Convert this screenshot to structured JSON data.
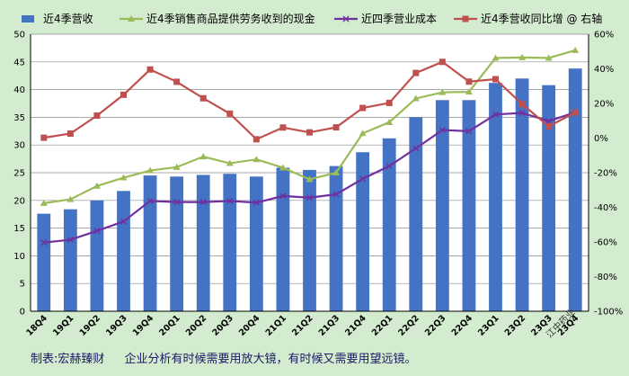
{
  "chart_data": {
    "type": "bar",
    "categories": [
      "18Q4",
      "19Q1",
      "19Q2",
      "19Q3",
      "19Q4",
      "20Q1",
      "20Q2",
      "20Q3",
      "20Q4",
      "21Q1",
      "21Q2",
      "21Q3",
      "21Q4",
      "22Q1",
      "22Q2",
      "22Q3",
      "22Q4",
      "23Q1",
      "23Q2",
      "23Q3",
      "23Q4"
    ],
    "ylim": [
      0,
      50
    ],
    "yticks": [
      0,
      5,
      10,
      15,
      20,
      25,
      30,
      35,
      40,
      45,
      50
    ],
    "y2lim": [
      -100,
      60
    ],
    "y2ticks": [
      "-100%",
      "-80%",
      "-60%",
      "-40%",
      "-20%",
      "0%",
      "20%",
      "40%",
      "60%"
    ],
    "grid": true,
    "legend_position": "top",
    "series": [
      {
        "name": "近4季营收",
        "type": "bar",
        "axis": "left",
        "color": "#4472c4",
        "values": [
          17.6,
          18.4,
          20.0,
          21.7,
          24.5,
          24.3,
          24.6,
          24.8,
          24.3,
          25.9,
          25.5,
          26.2,
          28.7,
          31.2,
          35.0,
          38.1,
          38.1,
          41.2,
          42.0,
          40.8,
          43.8
        ]
      },
      {
        "name": "近4季销售商品提供劳务收到的现金",
        "type": "line",
        "axis": "left",
        "color": "#9bbb59",
        "marker": "triangle",
        "values": [
          19.5,
          20.2,
          22.6,
          24.1,
          25.4,
          26.0,
          27.9,
          26.7,
          27.4,
          25.9,
          23.8,
          25.0,
          32.1,
          34.1,
          38.4,
          39.5,
          39.6,
          45.7,
          45.8,
          45.7,
          47.1
        ]
      },
      {
        "name": "近四季营业成本",
        "type": "line",
        "axis": "left",
        "color": "#7030a0",
        "marker": "x",
        "values": [
          12.4,
          12.9,
          14.5,
          16.2,
          19.9,
          19.7,
          19.7,
          19.9,
          19.6,
          20.8,
          20.5,
          21.1,
          23.9,
          26.2,
          29.4,
          32.7,
          32.5,
          35.5,
          35.8,
          34.3,
          35.9
        ]
      },
      {
        "name": "近4季营收同比增 @ 右轴",
        "type": "line",
        "axis": "right",
        "color": "#c0504d",
        "marker": "square",
        "values": [
          0.2,
          2.6,
          13.0,
          25.0,
          39.6,
          32.5,
          23.0,
          14.1,
          -0.7,
          6.1,
          3.3,
          6.2,
          17.4,
          20.3,
          37.6,
          44.0,
          32.6,
          34.0,
          19.6,
          6.8,
          14.8
        ]
      }
    ]
  },
  "footer": {
    "maker": "制表:宏赫臻财",
    "slogan": "企业分析有时候需要用放大镜，有时候又需要用望远镜。"
  },
  "watermark": "江中药业"
}
